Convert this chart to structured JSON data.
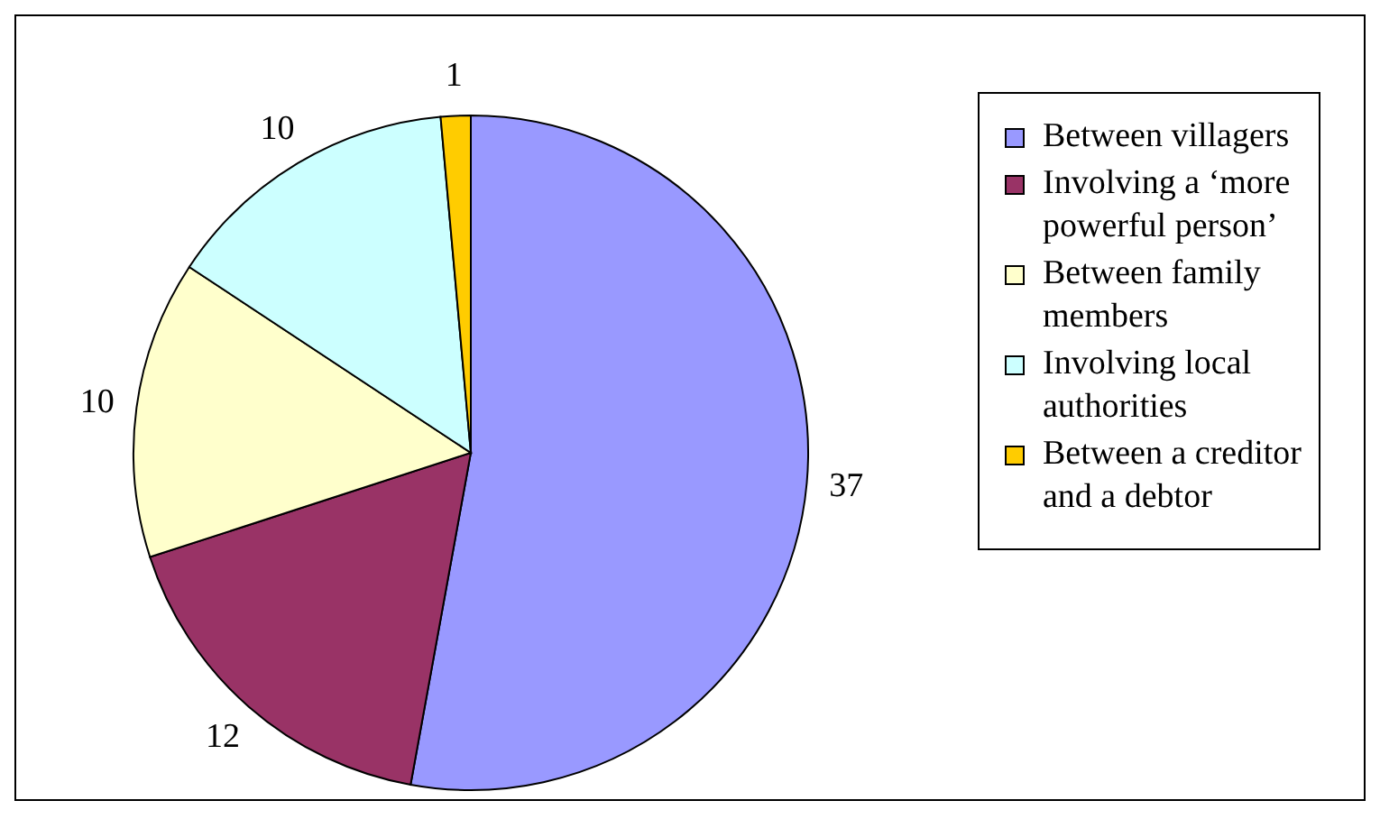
{
  "chart_data": {
    "type": "pie",
    "categories": [
      "Between villagers",
      "Involving a ‘more powerful person’",
      "Between family members",
      "Involving local authorities",
      "Between a creditor and a debtor"
    ],
    "values": [
      37,
      12,
      10,
      10,
      1
    ],
    "colors": [
      "#9999ff",
      "#993366",
      "#ffffcc",
      "#ccffff",
      "#ffcc00"
    ],
    "data_labels": true,
    "legend": "right"
  }
}
